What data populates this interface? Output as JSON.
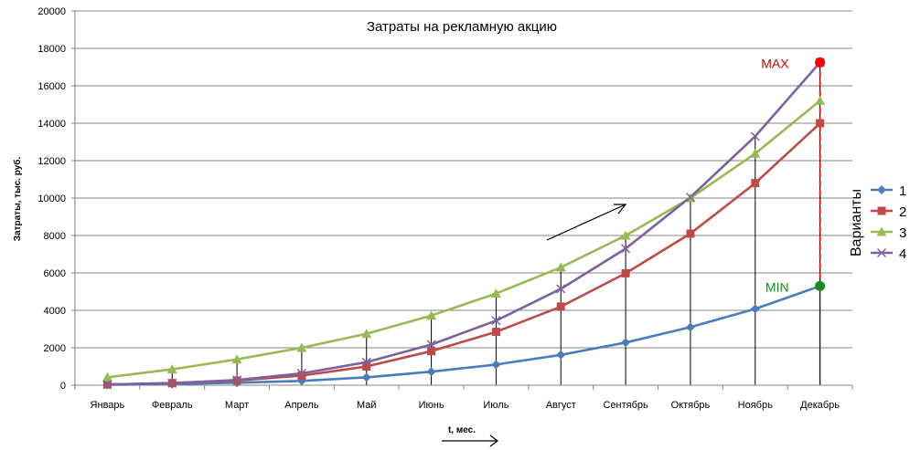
{
  "chart_data": {
    "type": "line",
    "title": "Затраты на рекламную акцию",
    "xlabel": "t, мес.",
    "ylabel": "Затраты, тыс. руб.",
    "categories": [
      "Январь",
      "Февраль",
      "Март",
      "Апрель",
      "Май",
      "Июнь",
      "Июль",
      "Август",
      "Сентябрь",
      "Октябрь",
      "Ноябрь",
      "Декабрь"
    ],
    "ylim": [
      0,
      20000
    ],
    "yticks": [
      "0",
      "2000",
      "4000",
      "6000",
      "8000",
      "10000",
      "12000",
      "14000",
      "16000",
      "18000",
      "20000"
    ],
    "grid": true,
    "legend_title": "Варианты",
    "legend_position": "right",
    "series": [
      {
        "name": "1",
        "color": "#4a7ebb",
        "marker": "diamond",
        "values": [
          20,
          60,
          130,
          230,
          420,
          720,
          1100,
          1620,
          2280,
          3100,
          4080,
          5300
        ]
      },
      {
        "name": "2",
        "color": "#be4b48",
        "marker": "square",
        "values": [
          40,
          110,
          250,
          510,
          1000,
          1820,
          2850,
          4200,
          5980,
          8100,
          10800,
          14000
        ]
      },
      {
        "name": "3",
        "color": "#98b954",
        "marker": "triangle",
        "values": [
          420,
          850,
          1380,
          2000,
          2750,
          3720,
          4900,
          6300,
          8000,
          10000,
          12380,
          15200
        ]
      },
      {
        "name": "4",
        "color": "#7d60a0",
        "marker": "x",
        "values": [
          40,
          110,
          280,
          630,
          1230,
          2170,
          3450,
          5150,
          7300,
          10050,
          13300,
          17250
        ]
      }
    ],
    "annotations": {
      "max_label": "MAX",
      "min_label": "MIN",
      "max_value": 17250,
      "min_value": 5300,
      "max_color": "#ff0000",
      "min_color": "#1a8a1a",
      "max_label_color": "#cc0000",
      "min_label_color": "#1a8a1a"
    },
    "drop_lines": true
  }
}
